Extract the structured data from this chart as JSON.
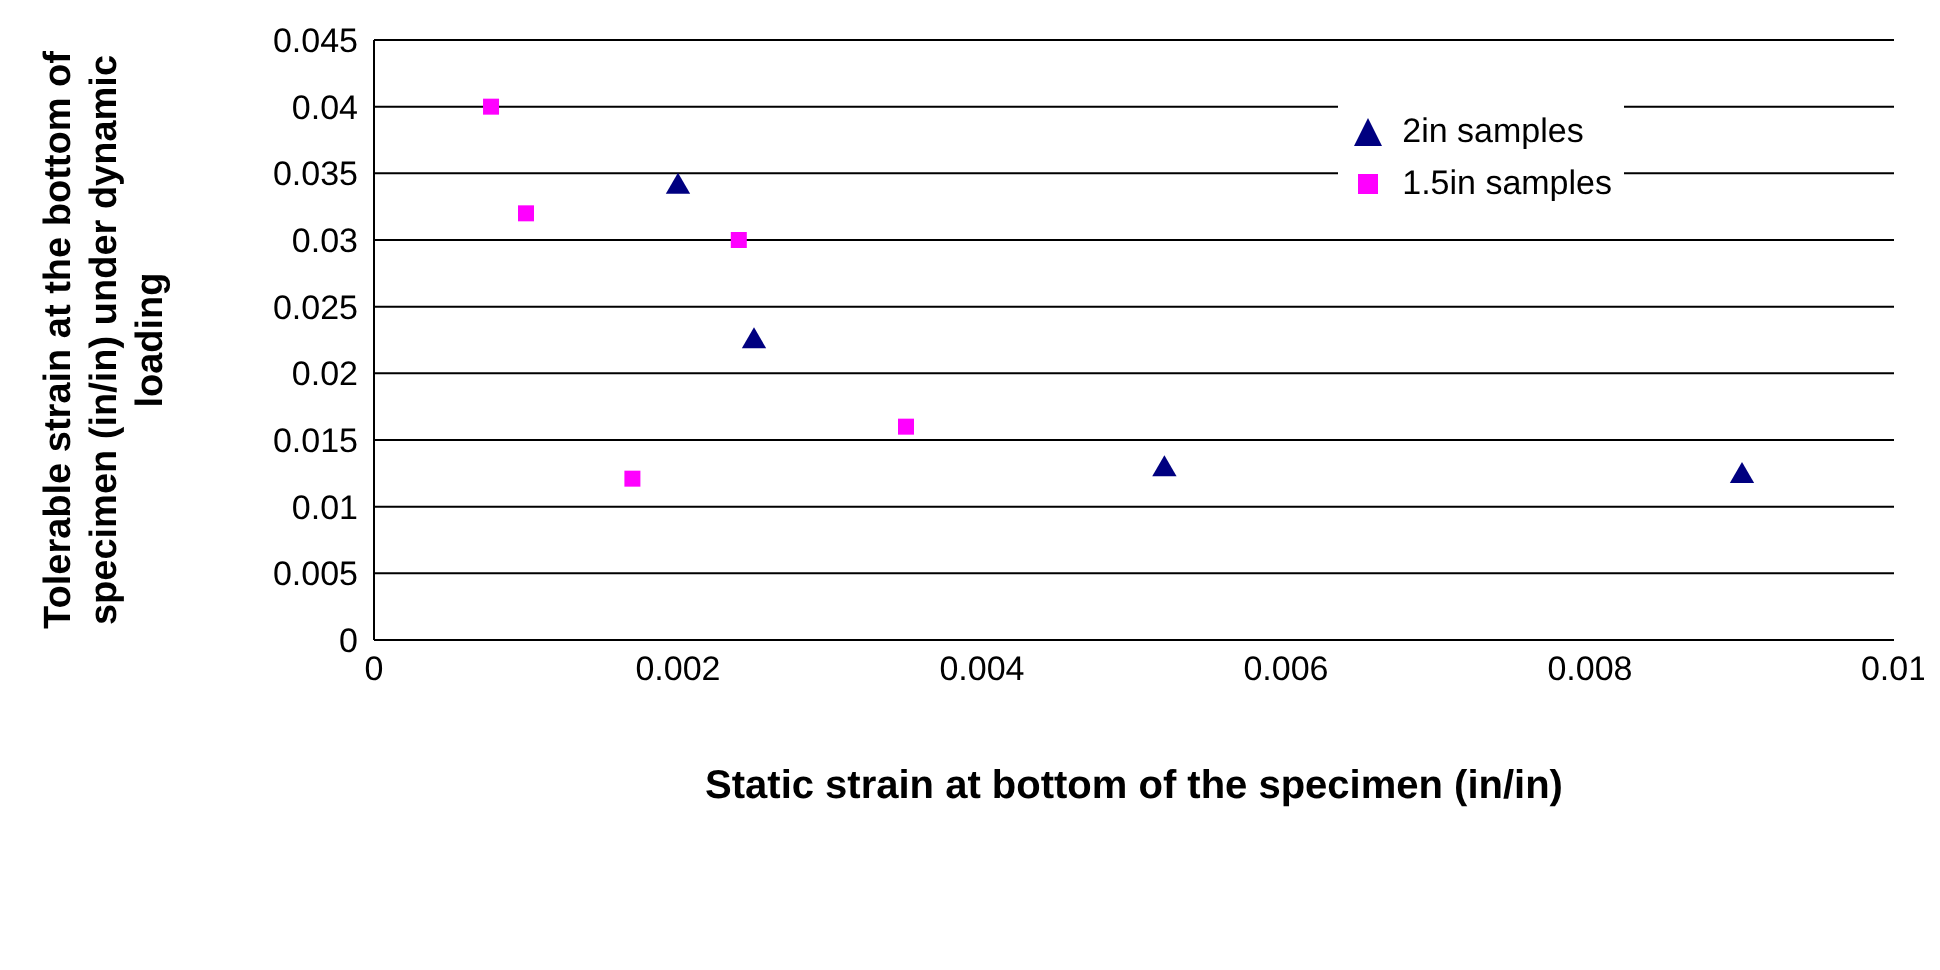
{
  "chart_data": {
    "type": "scatter",
    "xlabel": "Static strain at bottom of the specimen (in/in)",
    "ylabel": "Tolerable strain at the bottom of specimen (in/in) under dynamic loading",
    "xlim": [
      0,
      0.01
    ],
    "xticks": [
      0,
      0.002,
      0.004,
      0.006,
      0.008,
      0.01
    ],
    "ylim": [
      0,
      0.045
    ],
    "yticks": [
      0,
      0.005,
      0.01,
      0.015,
      0.02,
      0.025,
      0.03,
      0.035,
      0.04,
      0.045
    ],
    "grid": "y",
    "legend": "top right",
    "series": [
      {
        "name": "2in samples",
        "color": "#000080",
        "marker": "triangle",
        "x": [
          0.002,
          0.0025,
          0.0052,
          0.009
        ],
        "values": [
          0.034,
          0.0224,
          0.0128,
          0.0123
        ]
      },
      {
        "name": "1.5in samples",
        "color": "#ff00ff",
        "marker": "square",
        "x": [
          0.00077,
          0.001,
          0.0017,
          0.0024,
          0.0035
        ],
        "values": [
          0.04,
          0.032,
          0.0121,
          0.03,
          0.016
        ]
      }
    ]
  }
}
